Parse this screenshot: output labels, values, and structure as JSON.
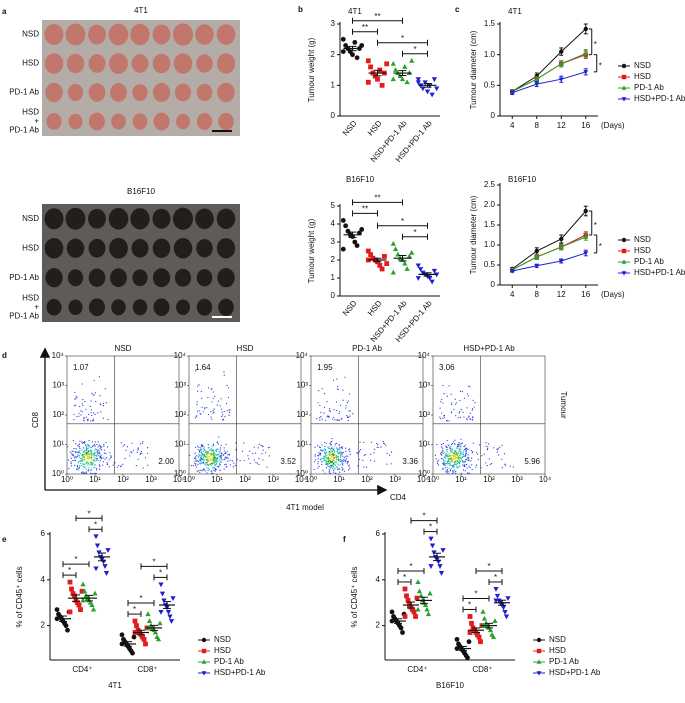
{
  "panel_letters": [
    "a",
    "b",
    "c",
    "d",
    "e",
    "f"
  ],
  "photo_panels": [
    {
      "title": "4T1",
      "rows": [
        [
          "NSD"
        ],
        [
          "HSD"
        ],
        [
          "PD-1 Ab"
        ],
        [
          "HSD",
          "+",
          "PD-1 Ab"
        ]
      ]
    },
    {
      "title": "B16F10",
      "rows": [
        [
          "NSD"
        ],
        [
          "HSD"
        ],
        [
          "PD-1 Ab"
        ],
        [
          "HSD",
          "+",
          "PD-1 Ab"
        ]
      ]
    }
  ],
  "chart_data": [
    {
      "type": "dot",
      "title": "4T1",
      "ylabel": "Tumour weight (g)",
      "categories": [
        "NSD",
        "HSD",
        "NSD+PD-1 Ab",
        "HSD+PD-1 Ab"
      ],
      "colors": [
        "#111111",
        "#e41a1c",
        "#2ca02c",
        "#1f1fd6"
      ],
      "values": [
        2.2,
        1.4,
        1.4,
        1.0
      ],
      "errors": [
        0.07,
        0.09,
        0.08,
        0.06
      ],
      "points": [
        [
          2.5,
          2.3,
          2.2,
          2.1,
          2.0,
          2.4,
          1.9,
          2.2,
          2.3,
          2.1
        ],
        [
          1.8,
          1.6,
          1.4,
          1.3,
          1.2,
          1.5,
          1.0,
          1.4,
          1.7,
          1.1
        ],
        [
          1.7,
          1.5,
          1.4,
          1.3,
          1.2,
          1.6,
          1.1,
          1.4,
          1.8,
          1.2
        ],
        [
          1.2,
          1.0,
          0.9,
          1.1,
          0.8,
          1.0,
          0.7,
          1.2,
          0.9,
          1.1
        ]
      ],
      "ylim": [
        0,
        3
      ],
      "yticks": [
        0,
        1,
        2,
        3
      ],
      "significance": [
        {
          "label": "*",
          "between": [
            2,
            3
          ]
        },
        {
          "label": "*",
          "between": [
            1,
            3
          ]
        },
        {
          "label": "**",
          "between": [
            0,
            1
          ]
        },
        {
          "label": "**",
          "between": [
            0,
            2
          ]
        }
      ]
    },
    {
      "type": "line",
      "title": "4T1",
      "ylabel": "Tumour diameter (cm)",
      "xlabel": "(Days)",
      "x": [
        4,
        8,
        12,
        16
      ],
      "xlim": [
        2,
        18
      ],
      "xticks": [
        4,
        8,
        12,
        16
      ],
      "ylim": [
        0,
        1.5
      ],
      "yticks": [
        0,
        0.5,
        {
          "value": 1,
          "label": "1.0"
        },
        1.5
      ],
      "series": [
        {
          "name": "NSD",
          "color": "#111111",
          "values": [
            0.4,
            0.65,
            1.05,
            1.42
          ],
          "errors": [
            0.03,
            0.05,
            0.06,
            0.08
          ]
        },
        {
          "name": "HSD",
          "color": "#e41a1c",
          "values": [
            0.4,
            0.6,
            0.85,
            1.0
          ],
          "errors": [
            0.03,
            0.04,
            0.05,
            0.06
          ]
        },
        {
          "name": "PD-1 Ab",
          "color": "#2ca02c",
          "values": [
            0.4,
            0.6,
            0.85,
            1.02
          ],
          "errors": [
            0.03,
            0.04,
            0.05,
            0.06
          ]
        },
        {
          "name": "HSD+PD-1 Ab",
          "color": "#1f1fd6",
          "values": [
            0.38,
            0.52,
            0.6,
            0.72
          ],
          "errors": [
            0.03,
            0.04,
            0.05,
            0.05
          ]
        }
      ],
      "significance": [
        {
          "label": "*",
          "between": [
            0,
            1
          ]
        },
        {
          "label": "*",
          "between": [
            1,
            3
          ]
        }
      ]
    },
    {
      "type": "dot",
      "title": "B16F10",
      "ylabel": "Tumour weight (g)",
      "categories": [
        "NSD",
        "HSD",
        "NSD+PD-1 Ab",
        "HSD+PD-1 Ab"
      ],
      "colors": [
        "#111111",
        "#e41a1c",
        "#2ca02c",
        "#1f1fd6"
      ],
      "values": [
        3.4,
        2.0,
        2.1,
        1.2
      ],
      "errors": [
        0.15,
        0.1,
        0.15,
        0.09
      ],
      "points": [
        [
          4.2,
          3.9,
          3.6,
          3.4,
          3.3,
          3.0,
          2.8,
          3.5,
          3.7,
          2.6
        ],
        [
          2.5,
          2.3,
          2.1,
          2.0,
          1.9,
          1.7,
          1.5,
          2.2,
          1.8,
          2.0
        ],
        [
          2.9,
          2.6,
          2.3,
          2.1,
          2.0,
          1.8,
          1.5,
          2.2,
          2.4,
          1.3
        ],
        [
          1.7,
          1.5,
          1.3,
          1.2,
          1.1,
          1.0,
          0.8,
          1.4,
          1.2,
          1.0
        ]
      ],
      "ylim": [
        0,
        5
      ],
      "yticks": [
        0,
        1,
        2,
        3,
        4,
        5
      ],
      "significance": [
        {
          "label": "*",
          "between": [
            2,
            3
          ]
        },
        {
          "label": "*",
          "between": [
            1,
            3
          ]
        },
        {
          "label": "**",
          "between": [
            0,
            1
          ]
        },
        {
          "label": "**",
          "between": [
            0,
            2
          ]
        }
      ]
    },
    {
      "type": "line",
      "title": "B16F10",
      "ylabel": "Tumour diameter (cm)",
      "xlabel": "(Days)",
      "x": [
        4,
        8,
        12,
        16
      ],
      "xlim": [
        2,
        18
      ],
      "xticks": [
        4,
        8,
        12,
        16
      ],
      "ylim": [
        0,
        2.5
      ],
      "yticks": [
        0,
        0.5,
        {
          "value": 1,
          "label": "1.0"
        },
        1.5,
        {
          "value": 2,
          "label": "2.0"
        },
        2.5
      ],
      "series": [
        {
          "name": "NSD",
          "color": "#111111",
          "values": [
            0.4,
            0.85,
            1.15,
            1.85
          ],
          "errors": [
            0.04,
            0.08,
            0.1,
            0.12
          ]
        },
        {
          "name": "HSD",
          "color": "#e41a1c",
          "values": [
            0.38,
            0.7,
            0.95,
            1.25
          ],
          "errors": [
            0.03,
            0.06,
            0.07,
            0.08
          ]
        },
        {
          "name": "PD-1 Ab",
          "color": "#2ca02c",
          "values": [
            0.38,
            0.7,
            0.95,
            1.2
          ],
          "errors": [
            0.03,
            0.06,
            0.07,
            0.08
          ]
        },
        {
          "name": "HSD+PD-1 Ab",
          "color": "#1f1fd6",
          "values": [
            0.35,
            0.48,
            0.6,
            0.8
          ],
          "errors": [
            0.03,
            0.04,
            0.05,
            0.07
          ]
        }
      ],
      "significance": [
        {
          "label": "*",
          "between": [
            0,
            1
          ]
        },
        {
          "label": "*",
          "between": [
            1,
            3
          ]
        }
      ]
    },
    {
      "type": "flow",
      "xlabel": "CD4",
      "ylabel": "CD8",
      "model_label": "4T1 model",
      "side_label": "Tumour",
      "log_scale": true,
      "xlim": [
        1,
        10000
      ],
      "ylim": [
        1,
        10000
      ],
      "xticks": [
        {
          "value": 1,
          "label": "10⁰"
        },
        {
          "value": 10,
          "label": "10¹"
        },
        {
          "value": 100,
          "label": "10²"
        },
        {
          "value": 1000,
          "label": "10³"
        },
        {
          "value": 10000,
          "label": "10⁴"
        }
      ],
      "yticks": [
        {
          "value": 1,
          "label": "10⁰"
        },
        {
          "value": 10,
          "label": "10¹"
        },
        {
          "value": 100,
          "label": "10²"
        },
        {
          "value": 1000,
          "label": "10³"
        },
        {
          "value": 10000,
          "label": "10⁴"
        }
      ],
      "panels": [
        {
          "title": "NSD",
          "values": [
            1.07,
            2.0
          ],
          "value_labels": [
            "1.07",
            "2.00"
          ]
        },
        {
          "title": "HSD",
          "values": [
            1.64,
            3.52
          ],
          "value_labels": [
            "1.64",
            "3.52"
          ]
        },
        {
          "title": "PD-1 Ab",
          "values": [
            1.95,
            3.36
          ],
          "value_labels": [
            "1.95",
            "3.36"
          ]
        },
        {
          "title": "HSD+PD-1 Ab",
          "values": [
            3.06,
            5.96
          ],
          "value_labels": [
            "3.06",
            "5.96"
          ]
        }
      ]
    },
    {
      "type": "grouped_dot",
      "ylabel": "% of CD45⁺ cells",
      "xlabel": "4T1",
      "categories": [
        "CD4⁺",
        "CD8⁺"
      ],
      "ylim": [
        0.5,
        6
      ],
      "yticks": [
        2,
        4,
        6
      ],
      "series": [
        {
          "name": "NSD",
          "color": "#111111",
          "values": [
            2.3,
            1.2
          ],
          "errors": [
            0.12,
            0.1
          ],
          "points": [
            [
              2.7,
              2.5,
              2.4,
              2.3,
              2.2,
              2.1,
              2.0,
              1.8,
              2.6,
              2.3
            ],
            [
              1.6,
              1.4,
              1.3,
              1.2,
              1.1,
              1.0,
              0.9,
              0.8,
              1.5,
              1.2
            ]
          ]
        },
        {
          "name": "HSD",
          "color": "#e41a1c",
          "values": [
            3.2,
            1.7
          ],
          "errors": [
            0.14,
            0.1
          ],
          "points": [
            [
              3.9,
              3.6,
              3.4,
              3.3,
              3.1,
              3.0,
              2.9,
              2.7,
              3.5,
              2.6
            ],
            [
              2.2,
              2.0,
              1.8,
              1.7,
              1.6,
              1.5,
              1.4,
              1.2,
              1.9,
              1.7
            ]
          ]
        },
        {
          "name": "PD-1 Ab",
          "color": "#2ca02c",
          "values": [
            3.2,
            1.9
          ],
          "errors": [
            0.12,
            0.11
          ],
          "points": [
            [
              3.8,
              3.5,
              3.3,
              3.2,
              3.1,
              3.0,
              2.9,
              2.7,
              3.4,
              3.1
            ],
            [
              2.5,
              2.2,
              2.0,
              1.9,
              1.8,
              1.7,
              1.5,
              1.4,
              2.1,
              1.9
            ]
          ]
        },
        {
          "name": "HSD+PD-1 Ab",
          "color": "#1f1fd6",
          "values": [
            5.0,
            2.9
          ],
          "errors": [
            0.17,
            0.15
          ],
          "points": [
            [
              5.9,
              5.5,
              5.2,
              5.0,
              4.9,
              4.8,
              4.6,
              4.3,
              5.3,
              4.5
            ],
            [
              3.8,
              3.4,
              3.1,
              2.9,
              2.8,
              2.6,
              2.4,
              2.2,
              3.2,
              2.6
            ]
          ]
        }
      ],
      "significance": [
        {
          "label": "*",
          "category": 0,
          "between": [
            0,
            1
          ]
        },
        {
          "label": "*",
          "category": 0,
          "between": [
            0,
            2
          ]
        },
        {
          "label": "*",
          "category": 0,
          "between": [
            2,
            3
          ]
        },
        {
          "label": "*",
          "category": 0,
          "between": [
            1,
            3
          ]
        },
        {
          "label": "*",
          "category": 1,
          "between": [
            0,
            1
          ]
        },
        {
          "label": "*",
          "category": 1,
          "between": [
            0,
            2
          ]
        },
        {
          "label": "*",
          "category": 1,
          "between": [
            2,
            3
          ]
        },
        {
          "label": "*",
          "category": 1,
          "between": [
            1,
            3
          ]
        }
      ]
    },
    {
      "type": "grouped_dot",
      "ylabel": "% of CD45⁺ cells",
      "xlabel": "B16F10",
      "categories": [
        "CD4⁺",
        "CD8⁺"
      ],
      "ylim": [
        0.5,
        6
      ],
      "yticks": [
        2,
        4,
        6
      ],
      "series": [
        {
          "name": "NSD",
          "color": "#111111",
          "values": [
            2.2,
            1.0
          ],
          "errors": [
            0.1,
            0.09
          ],
          "points": [
            [
              2.6,
              2.4,
              2.3,
              2.2,
              2.1,
              2.0,
              1.9,
              1.7,
              2.5,
              2.2
            ],
            [
              1.4,
              1.2,
              1.1,
              1.0,
              0.9,
              0.8,
              0.7,
              0.6,
              1.3,
              1.0
            ]
          ]
        },
        {
          "name": "HSD",
          "color": "#e41a1c",
          "values": [
            2.9,
            1.8
          ],
          "errors": [
            0.13,
            0.1
          ],
          "points": [
            [
              3.6,
              3.3,
              3.1,
              2.9,
              2.8,
              2.7,
              2.6,
              2.4,
              3.2,
              2.4
            ],
            [
              2.4,
              2.1,
              1.9,
              1.8,
              1.7,
              1.6,
              1.5,
              1.3,
              2.0,
              1.7
            ]
          ]
        },
        {
          "name": "PD-1 Ab",
          "color": "#2ca02c",
          "values": [
            3.1,
            2.0
          ],
          "errors": [
            0.14,
            0.1
          ],
          "points": [
            [
              3.9,
              3.5,
              3.3,
              3.1,
              3.0,
              2.9,
              2.7,
              2.5,
              3.4,
              2.7
            ],
            [
              2.6,
              2.3,
              2.1,
              2.0,
              1.9,
              1.8,
              1.6,
              1.5,
              2.2,
              2.0
            ]
          ]
        },
        {
          "name": "HSD+PD-1 Ab",
          "color": "#1f1fd6",
          "values": [
            5.0,
            3.0
          ],
          "errors": [
            0.16,
            0.11
          ],
          "points": [
            [
              5.8,
              5.5,
              5.2,
              5.0,
              4.9,
              4.8,
              4.6,
              4.3,
              5.3,
              4.6
            ],
            [
              3.6,
              3.3,
              3.1,
              3.0,
              2.9,
              2.8,
              2.6,
              2.4,
              3.2,
              3.1
            ]
          ]
        }
      ],
      "significance": [
        {
          "label": "*",
          "category": 0,
          "between": [
            0,
            1
          ]
        },
        {
          "label": "*",
          "category": 0,
          "between": [
            0,
            2
          ]
        },
        {
          "label": "*",
          "category": 0,
          "between": [
            2,
            3
          ]
        },
        {
          "label": "*",
          "category": 0,
          "between": [
            1,
            3
          ]
        },
        {
          "label": "*",
          "category": 1,
          "between": [
            0,
            1
          ]
        },
        {
          "label": "*",
          "category": 1,
          "between": [
            0,
            2
          ]
        },
        {
          "label": "*",
          "category": 1,
          "between": [
            2,
            3
          ]
        },
        {
          "label": "*",
          "category": 1,
          "between": [
            1,
            3
          ]
        }
      ]
    }
  ]
}
